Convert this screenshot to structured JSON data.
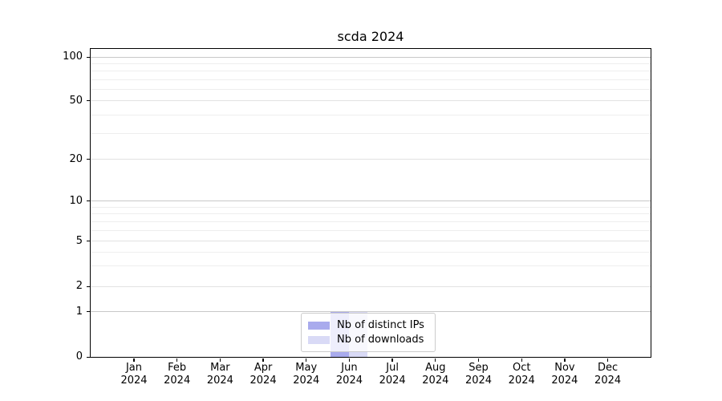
{
  "page": {
    "background": "#ffffff"
  },
  "chart_data": {
    "type": "bar",
    "title": "scda 2024",
    "xlabel": "",
    "ylabel": "",
    "x": {
      "categories": [
        "Jan",
        "Feb",
        "Mar",
        "Apr",
        "May",
        "Jun",
        "Jul",
        "Aug",
        "Sep",
        "Oct",
        "Nov",
        "Dec"
      ],
      "year_suffix": "2024"
    },
    "y_axis": {
      "scale": "symlog",
      "ylim": [
        0,
        100
      ],
      "tick_values": [
        0,
        1,
        2,
        5,
        10,
        20,
        50,
        100
      ],
      "tick_labels": [
        "0",
        "1",
        "2",
        "5",
        "10",
        "20",
        "50",
        "100"
      ],
      "minor_tick_values": [
        3,
        4,
        6,
        7,
        8,
        9,
        30,
        40,
        60,
        70,
        80,
        90
      ],
      "grid": true
    },
    "series": [
      {
        "name": "Nb of distinct IPs",
        "color": "#a9abed",
        "values": [
          0,
          0,
          0,
          0,
          0,
          1,
          0,
          0,
          0,
          0,
          0,
          0
        ]
      },
      {
        "name": "Nb of downloads",
        "color": "#d9daf6",
        "values": [
          0,
          0,
          0,
          0,
          0,
          1,
          0,
          0,
          0,
          0,
          0,
          0
        ]
      }
    ],
    "legend": {
      "position": "lower center inside",
      "border_color": "#cccccc",
      "entries": [
        {
          "label": "Nb of distinct IPs",
          "color": "#a9abed"
        },
        {
          "label": "Nb of downloads",
          "color": "#d9daf6"
        }
      ]
    },
    "colors": {
      "grid_major": "#c8c8c8",
      "grid_mid": "#e2e2e2",
      "grid_minor": "#eeeeee",
      "spine": "#000000",
      "text": "#000000"
    }
  }
}
